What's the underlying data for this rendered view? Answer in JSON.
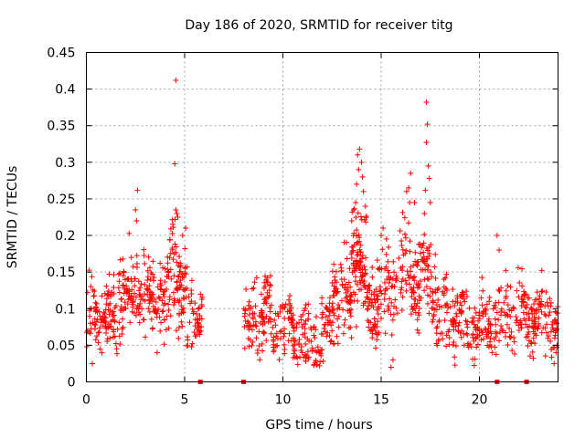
{
  "chart_data": {
    "type": "scatter",
    "title": "Day 186 of 2020, SRMTID for receiver titg",
    "xlabel": "GPS time / hours",
    "ylabel": "SRMTID / TECUs",
    "xlim": [
      0,
      24
    ],
    "ylim": [
      0,
      0.45
    ],
    "x_ticks": [
      0,
      5,
      10,
      15,
      20
    ],
    "x_tick_labels": [
      "0",
      "5",
      "10",
      "15",
      "20"
    ],
    "y_ticks": [
      0,
      0.05,
      0.1,
      0.15,
      0.2,
      0.25,
      0.3,
      0.35,
      0.4,
      0.45
    ],
    "y_tick_labels": [
      "0",
      "0.05",
      "0.1",
      "0.15",
      "0.2",
      "0.25",
      "0.3",
      "0.35",
      "0.4",
      "0.45"
    ],
    "grid": true,
    "marker": "+",
    "color": "#ff0000",
    "zero_markers_x": [
      5.8,
      8.0,
      20.9,
      22.4
    ],
    "segments": [
      {
        "start": 0.0,
        "end": 1.6,
        "base": 0.08,
        "spread": 0.05,
        "density": 110
      },
      {
        "start": 1.6,
        "end": 3.0,
        "base": 0.13,
        "spread": 0.06,
        "density": 100
      },
      {
        "start": 3.0,
        "end": 4.2,
        "base": 0.11,
        "spread": 0.06,
        "density": 90
      },
      {
        "start": 4.2,
        "end": 5.1,
        "base": 0.15,
        "spread": 0.07,
        "density": 80
      },
      {
        "start": 5.1,
        "end": 5.9,
        "base": 0.1,
        "spread": 0.05,
        "density": 50
      },
      {
        "start": 8.0,
        "end": 9.5,
        "base": 0.09,
        "spread": 0.06,
        "density": 100
      },
      {
        "start": 9.5,
        "end": 12.5,
        "base": 0.07,
        "spread": 0.05,
        "density": 180
      },
      {
        "start": 12.5,
        "end": 13.5,
        "base": 0.11,
        "spread": 0.06,
        "density": 80
      },
      {
        "start": 13.5,
        "end": 14.3,
        "base": 0.17,
        "spread": 0.08,
        "density": 90
      },
      {
        "start": 14.3,
        "end": 15.8,
        "base": 0.12,
        "spread": 0.06,
        "density": 110
      },
      {
        "start": 15.8,
        "end": 17.8,
        "base": 0.15,
        "spread": 0.07,
        "density": 140
      },
      {
        "start": 17.8,
        "end": 20.5,
        "base": 0.08,
        "spread": 0.05,
        "density": 170
      },
      {
        "start": 20.5,
        "end": 22.8,
        "base": 0.09,
        "spread": 0.05,
        "density": 140
      },
      {
        "start": 22.8,
        "end": 24.0,
        "base": 0.09,
        "spread": 0.05,
        "density": 80
      }
    ],
    "peaks": [
      {
        "x": 2.6,
        "y": 0.262
      },
      {
        "x": 2.5,
        "y": 0.235
      },
      {
        "x": 2.55,
        "y": 0.22
      },
      {
        "x": 4.55,
        "y": 0.412
      },
      {
        "x": 4.5,
        "y": 0.298
      },
      {
        "x": 4.55,
        "y": 0.235
      },
      {
        "x": 4.6,
        "y": 0.23
      },
      {
        "x": 4.65,
        "y": 0.225
      },
      {
        "x": 4.9,
        "y": 0.2
      },
      {
        "x": 13.9,
        "y": 0.318
      },
      {
        "x": 13.8,
        "y": 0.31
      },
      {
        "x": 14.0,
        "y": 0.3
      },
      {
        "x": 13.85,
        "y": 0.29
      },
      {
        "x": 14.05,
        "y": 0.28
      },
      {
        "x": 13.75,
        "y": 0.27
      },
      {
        "x": 14.1,
        "y": 0.26
      },
      {
        "x": 13.7,
        "y": 0.245
      },
      {
        "x": 13.6,
        "y": 0.235
      },
      {
        "x": 14.2,
        "y": 0.24
      },
      {
        "x": 13.5,
        "y": 0.22
      },
      {
        "x": 15.1,
        "y": 0.21
      },
      {
        "x": 15.0,
        "y": 0.2
      },
      {
        "x": 16.5,
        "y": 0.285
      },
      {
        "x": 16.4,
        "y": 0.265
      },
      {
        "x": 16.3,
        "y": 0.26
      },
      {
        "x": 16.45,
        "y": 0.245
      },
      {
        "x": 16.7,
        "y": 0.245
      },
      {
        "x": 17.3,
        "y": 0.382
      },
      {
        "x": 17.35,
        "y": 0.352
      },
      {
        "x": 17.3,
        "y": 0.327
      },
      {
        "x": 17.4,
        "y": 0.295
      },
      {
        "x": 17.45,
        "y": 0.278
      },
      {
        "x": 17.25,
        "y": 0.262
      },
      {
        "x": 17.5,
        "y": 0.245
      },
      {
        "x": 17.2,
        "y": 0.23
      },
      {
        "x": 21.0,
        "y": 0.18
      },
      {
        "x": 20.9,
        "y": 0.2
      },
      {
        "x": 15.5,
        "y": 0.02
      },
      {
        "x": 15.6,
        "y": 0.03
      },
      {
        "x": 23.8,
        "y": 0.025
      },
      {
        "x": 0.3,
        "y": 0.025
      },
      {
        "x": 23.9,
        "y": 0.04
      },
      {
        "x": 3.6,
        "y": 0.04
      }
    ]
  }
}
